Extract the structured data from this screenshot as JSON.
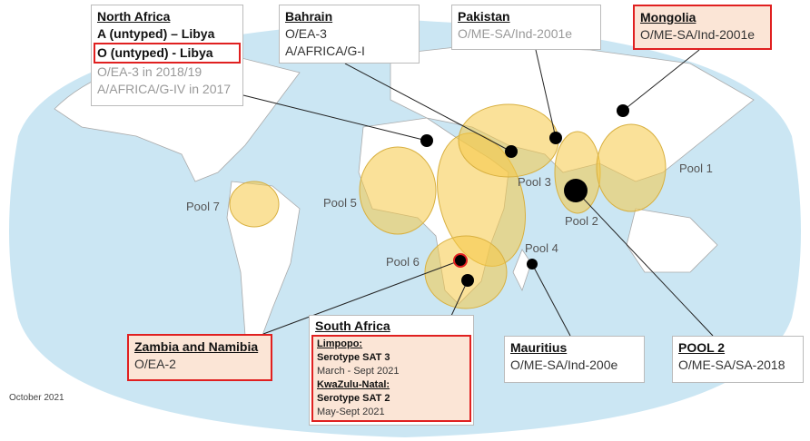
{
  "callouts": {
    "north_africa": {
      "title": "North Africa",
      "lines": [
        "A (untyped) – Libya",
        "O (untyped) - Libya",
        "O/EA-3 in 2018/19",
        "A/AFRICA/G-IV in 2017"
      ]
    },
    "bahrain": {
      "title": "Bahrain",
      "lines": [
        "O/EA-3",
        "A/AFRICA/G-I"
      ]
    },
    "pakistan": {
      "title": "Pakistan",
      "lines": [
        "O/ME-SA/Ind-2001e"
      ]
    },
    "mongolia": {
      "title": "Mongolia",
      "lines": [
        "O/ME-SA/Ind-2001e"
      ]
    },
    "zambia_namibia": {
      "title": "Zambia and Namibia",
      "lines": [
        "O/EA-2"
      ]
    },
    "south_africa": {
      "title": "South Africa",
      "lines": [
        "Limpopo:",
        "Serotype SAT 3",
        "March - Sept 2021",
        "KwaZulu-Natal:",
        "Serotype SAT 2",
        "May-Sept 2021"
      ]
    },
    "mauritius": {
      "title": "Mauritius",
      "lines": [
        "O/ME-SA/Ind-200e"
      ]
    },
    "pool2": {
      "title": "POOL 2",
      "lines": [
        "O/ME-SA/SA-2018"
      ]
    }
  },
  "pools": [
    "Pool 1",
    "Pool 2",
    "Pool 3",
    "Pool 4",
    "Pool 5",
    "Pool 6",
    "Pool 7"
  ],
  "date": "October 2021"
}
